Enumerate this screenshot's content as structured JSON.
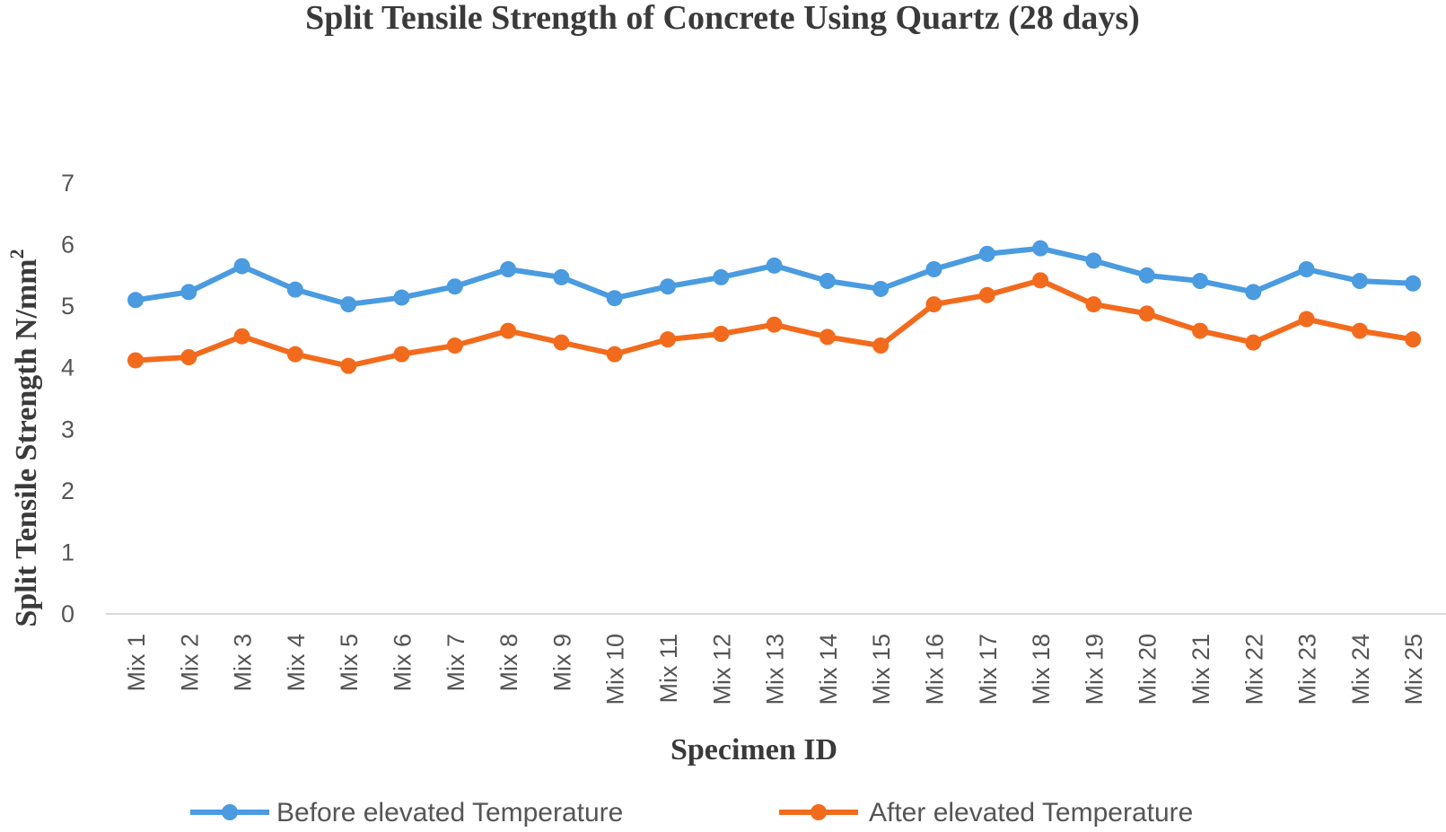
{
  "chart_data": {
    "type": "line",
    "title": "Split Tensile Strength of Concrete Using Quartz (28 days)",
    "xlabel": "Specimen ID",
    "ylabel_main": "Split Tensile Strength N/mm",
    "ylabel_sup": "2",
    "ylim": [
      0,
      7
    ],
    "yticks": [
      "0",
      "1",
      "2",
      "3",
      "4",
      "5",
      "6",
      "7"
    ],
    "grid": false,
    "legend_position": "bottom",
    "categories": [
      "Mix 1",
      "Mix 2",
      "Mix 3",
      "Mix 4",
      "Mix 5",
      "Mix 6",
      "Mix 7",
      "Mix 8",
      "Mix 9",
      "Mix 10",
      "Mix 11",
      "Mix 12",
      "Mix 13",
      "Mix 14",
      "Mix 15",
      "Mix 16",
      "Mix 17",
      "Mix 18",
      "Mix 19",
      "Mix 20",
      "Mix 21",
      "Mix 22",
      "Mix 23",
      "Mix 24",
      "Mix 25"
    ],
    "series": [
      {
        "name": "Before elevated Temperature",
        "color": "#4a9be0",
        "values": [
          5.1,
          5.23,
          5.65,
          5.27,
          5.03,
          5.14,
          5.32,
          5.6,
          5.47,
          5.13,
          5.32,
          5.47,
          5.66,
          5.41,
          5.28,
          5.6,
          5.85,
          5.94,
          5.74,
          5.5,
          5.41,
          5.23,
          5.6,
          5.41,
          5.37
        ]
      },
      {
        "name": "After elevated Temperature",
        "color": "#f26b1d",
        "values": [
          4.12,
          4.17,
          4.51,
          4.22,
          4.03,
          4.22,
          4.36,
          4.6,
          4.41,
          4.22,
          4.46,
          4.55,
          4.7,
          4.5,
          4.36,
          5.03,
          5.18,
          5.42,
          5.03,
          4.88,
          4.6,
          4.41,
          4.79,
          4.6,
          4.46
        ]
      }
    ]
  }
}
